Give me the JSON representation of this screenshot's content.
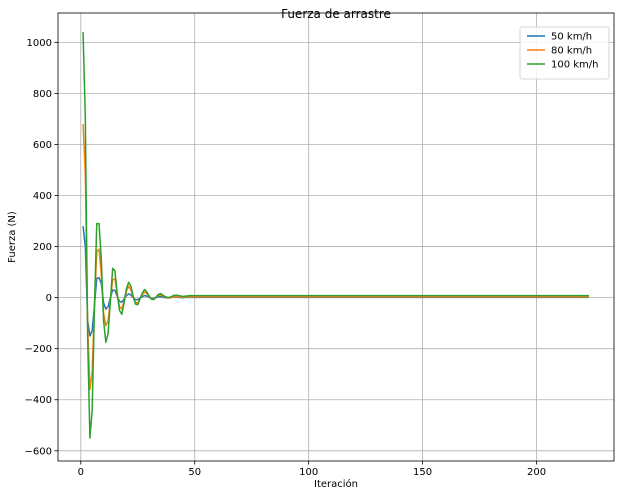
{
  "chart_data": {
    "type": "line",
    "title": "Fuerza de arrastre",
    "xlabel": "Iteración",
    "ylabel": "Fuerza (N)",
    "xlim": [
      -10,
      234
    ],
    "ylim": [
      -640,
      1115
    ],
    "xticks": [
      0,
      50,
      100,
      150,
      200
    ],
    "yticks": [
      -600,
      -400,
      -200,
      0,
      200,
      400,
      600,
      800,
      1000
    ],
    "grid": true,
    "legend_position": "top-right",
    "series": [
      {
        "name": "50 km/h",
        "color": "#1f77b4",
        "points": [
          [
            1,
            280
          ],
          [
            2,
            200
          ],
          [
            3,
            -90
          ],
          [
            4,
            -150
          ],
          [
            5,
            -130
          ],
          [
            6,
            -30
          ],
          [
            7,
            75
          ],
          [
            8,
            78
          ],
          [
            9,
            55
          ],
          [
            10,
            -20
          ],
          [
            11,
            -45
          ],
          [
            12,
            -35
          ],
          [
            13,
            0
          ],
          [
            14,
            30
          ],
          [
            15,
            28
          ],
          [
            16,
            5
          ],
          [
            17,
            -15
          ],
          [
            18,
            -18
          ],
          [
            19,
            -5
          ],
          [
            20,
            8
          ],
          [
            21,
            15
          ],
          [
            22,
            10
          ],
          [
            23,
            0
          ],
          [
            24,
            -8
          ],
          [
            25,
            -8
          ],
          [
            26,
            -2
          ],
          [
            27,
            4
          ],
          [
            28,
            8
          ],
          [
            29,
            6
          ],
          [
            30,
            1
          ],
          [
            31,
            -3
          ],
          [
            32,
            -3
          ],
          [
            33,
            0
          ],
          [
            34,
            3
          ],
          [
            35,
            4
          ],
          [
            36,
            2
          ],
          [
            37,
            0
          ],
          [
            38,
            -1
          ],
          [
            39,
            -1
          ],
          [
            40,
            1
          ],
          [
            41,
            2
          ],
          [
            42,
            2
          ],
          [
            43,
            1
          ],
          [
            44,
            0
          ],
          [
            45,
            0
          ],
          [
            46,
            1
          ],
          [
            47,
            1
          ],
          [
            48,
            1
          ],
          [
            49,
            1
          ],
          [
            50,
            1
          ],
          [
            60,
            1
          ],
          [
            80,
            1
          ],
          [
            100,
            1
          ],
          [
            150,
            1
          ],
          [
            200,
            1
          ],
          [
            223,
            1
          ]
        ]
      },
      {
        "name": "80 km/h",
        "color": "#ff7f0e",
        "points": [
          [
            1,
            680
          ],
          [
            2,
            480
          ],
          [
            3,
            -100
          ],
          [
            4,
            -360
          ],
          [
            5,
            -290
          ],
          [
            6,
            -30
          ],
          [
            7,
            180
          ],
          [
            8,
            190
          ],
          [
            9,
            90
          ],
          [
            10,
            -60
          ],
          [
            11,
            -110
          ],
          [
            12,
            -90
          ],
          [
            13,
            -10
          ],
          [
            14,
            70
          ],
          [
            15,
            75
          ],
          [
            16,
            10
          ],
          [
            17,
            -35
          ],
          [
            18,
            -45
          ],
          [
            19,
            -15
          ],
          [
            20,
            25
          ],
          [
            21,
            45
          ],
          [
            22,
            30
          ],
          [
            23,
            0
          ],
          [
            24,
            -20
          ],
          [
            25,
            -20
          ],
          [
            26,
            -5
          ],
          [
            27,
            12
          ],
          [
            28,
            22
          ],
          [
            29,
            15
          ],
          [
            30,
            4
          ],
          [
            31,
            -6
          ],
          [
            32,
            -6
          ],
          [
            33,
            1
          ],
          [
            34,
            8
          ],
          [
            35,
            10
          ],
          [
            36,
            6
          ],
          [
            37,
            2
          ],
          [
            38,
            -1
          ],
          [
            39,
            -1
          ],
          [
            40,
            2
          ],
          [
            41,
            4
          ],
          [
            42,
            4
          ],
          [
            43,
            3
          ],
          [
            44,
            2
          ],
          [
            45,
            2
          ],
          [
            46,
            3
          ],
          [
            47,
            3
          ],
          [
            48,
            3
          ],
          [
            49,
            3
          ],
          [
            50,
            3
          ],
          [
            60,
            3
          ],
          [
            80,
            3
          ],
          [
            100,
            3
          ],
          [
            150,
            3
          ],
          [
            200,
            3
          ],
          [
            223,
            3
          ]
        ]
      },
      {
        "name": "100 km/h",
        "color": "#2ca02c",
        "points": [
          [
            1,
            1040
          ],
          [
            2,
            700
          ],
          [
            3,
            -150
          ],
          [
            4,
            -550
          ],
          [
            5,
            -440
          ],
          [
            6,
            -40
          ],
          [
            7,
            290
          ],
          [
            8,
            290
          ],
          [
            9,
            150
          ],
          [
            10,
            -90
          ],
          [
            11,
            -175
          ],
          [
            12,
            -140
          ],
          [
            13,
            -10
          ],
          [
            14,
            115
          ],
          [
            15,
            105
          ],
          [
            16,
            15
          ],
          [
            17,
            -50
          ],
          [
            18,
            -65
          ],
          [
            19,
            -20
          ],
          [
            20,
            35
          ],
          [
            21,
            60
          ],
          [
            22,
            45
          ],
          [
            23,
            5
          ],
          [
            24,
            -25
          ],
          [
            25,
            -28
          ],
          [
            26,
            -5
          ],
          [
            27,
            18
          ],
          [
            28,
            32
          ],
          [
            29,
            22
          ],
          [
            30,
            6
          ],
          [
            31,
            -6
          ],
          [
            32,
            -8
          ],
          [
            33,
            2
          ],
          [
            34,
            12
          ],
          [
            35,
            16
          ],
          [
            36,
            10
          ],
          [
            37,
            4
          ],
          [
            38,
            1
          ],
          [
            39,
            1
          ],
          [
            40,
            5
          ],
          [
            41,
            9
          ],
          [
            42,
            10
          ],
          [
            43,
            8
          ],
          [
            44,
            6
          ],
          [
            45,
            5
          ],
          [
            46,
            6
          ],
          [
            47,
            7
          ],
          [
            48,
            8
          ],
          [
            49,
            8
          ],
          [
            50,
            8
          ],
          [
            60,
            8
          ],
          [
            80,
            8
          ],
          [
            100,
            8
          ],
          [
            150,
            8
          ],
          [
            200,
            8
          ],
          [
            223,
            8
          ]
        ]
      }
    ]
  }
}
